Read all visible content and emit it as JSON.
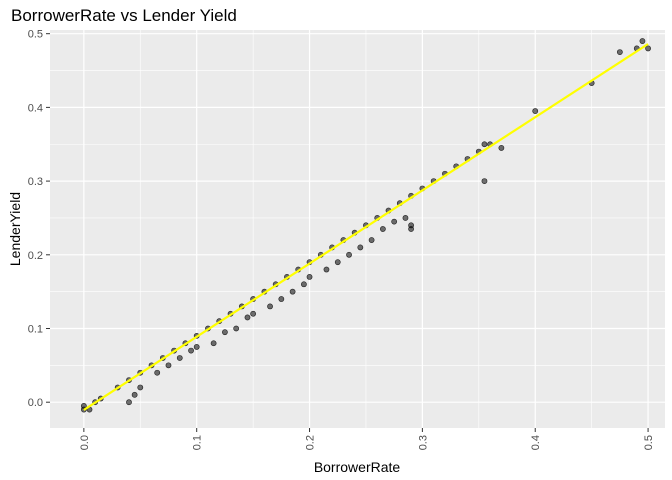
{
  "chart_data": {
    "type": "scatter",
    "title": "BorrowerRate vs Lender Yield",
    "xlabel": "BorrowerRate",
    "ylabel": "LenderYield",
    "xlim": [
      -0.03,
      0.515
    ],
    "ylim": [
      -0.035,
      0.505
    ],
    "xticks": [
      0.0,
      0.1,
      0.2,
      0.3,
      0.4,
      0.5
    ],
    "xtick_labels": [
      "0.0",
      "0.1",
      "0.2",
      "0.3",
      "0.4",
      "0.5"
    ],
    "yticks": [
      0.0,
      0.1,
      0.2,
      0.3,
      0.4,
      0.5
    ],
    "ytick_labels": [
      "0.0",
      "0.1",
      "0.2",
      "0.3",
      "0.4",
      "0.5"
    ],
    "grid": true,
    "background_color": "#EBEBEB",
    "point_color": "#000000",
    "point_alpha": 0.55,
    "trend_line": {
      "color": "#FFFF00",
      "method": "linear",
      "intercept": -0.0105,
      "slope": 0.993
    },
    "points": [
      {
        "x": 0.0,
        "y": -0.01
      },
      {
        "x": 0.0,
        "y": -0.005
      },
      {
        "x": 0.005,
        "y": -0.01
      },
      {
        "x": 0.01,
        "y": 0.0
      },
      {
        "x": 0.015,
        "y": 0.005
      },
      {
        "x": 0.03,
        "y": 0.02
      },
      {
        "x": 0.04,
        "y": 0.03
      },
      {
        "x": 0.04,
        "y": 0.0
      },
      {
        "x": 0.045,
        "y": 0.01
      },
      {
        "x": 0.05,
        "y": 0.04
      },
      {
        "x": 0.05,
        "y": 0.02
      },
      {
        "x": 0.06,
        "y": 0.05
      },
      {
        "x": 0.065,
        "y": 0.04
      },
      {
        "x": 0.07,
        "y": 0.06
      },
      {
        "x": 0.075,
        "y": 0.05
      },
      {
        "x": 0.08,
        "y": 0.07
      },
      {
        "x": 0.085,
        "y": 0.06
      },
      {
        "x": 0.09,
        "y": 0.08
      },
      {
        "x": 0.095,
        "y": 0.07
      },
      {
        "x": 0.1,
        "y": 0.09
      },
      {
        "x": 0.1,
        "y": 0.075
      },
      {
        "x": 0.11,
        "y": 0.1
      },
      {
        "x": 0.115,
        "y": 0.08
      },
      {
        "x": 0.12,
        "y": 0.11
      },
      {
        "x": 0.125,
        "y": 0.095
      },
      {
        "x": 0.13,
        "y": 0.12
      },
      {
        "x": 0.135,
        "y": 0.1
      },
      {
        "x": 0.14,
        "y": 0.13
      },
      {
        "x": 0.145,
        "y": 0.115
      },
      {
        "x": 0.15,
        "y": 0.14
      },
      {
        "x": 0.15,
        "y": 0.12
      },
      {
        "x": 0.16,
        "y": 0.15
      },
      {
        "x": 0.165,
        "y": 0.13
      },
      {
        "x": 0.17,
        "y": 0.16
      },
      {
        "x": 0.175,
        "y": 0.14
      },
      {
        "x": 0.18,
        "y": 0.17
      },
      {
        "x": 0.185,
        "y": 0.15
      },
      {
        "x": 0.19,
        "y": 0.18
      },
      {
        "x": 0.195,
        "y": 0.16
      },
      {
        "x": 0.2,
        "y": 0.19
      },
      {
        "x": 0.2,
        "y": 0.17
      },
      {
        "x": 0.21,
        "y": 0.2
      },
      {
        "x": 0.215,
        "y": 0.18
      },
      {
        "x": 0.22,
        "y": 0.21
      },
      {
        "x": 0.225,
        "y": 0.19
      },
      {
        "x": 0.23,
        "y": 0.22
      },
      {
        "x": 0.235,
        "y": 0.2
      },
      {
        "x": 0.24,
        "y": 0.23
      },
      {
        "x": 0.245,
        "y": 0.21
      },
      {
        "x": 0.25,
        "y": 0.24
      },
      {
        "x": 0.255,
        "y": 0.22
      },
      {
        "x": 0.26,
        "y": 0.25
      },
      {
        "x": 0.265,
        "y": 0.235
      },
      {
        "x": 0.27,
        "y": 0.26
      },
      {
        "x": 0.275,
        "y": 0.245
      },
      {
        "x": 0.28,
        "y": 0.27
      },
      {
        "x": 0.285,
        "y": 0.25
      },
      {
        "x": 0.29,
        "y": 0.28
      },
      {
        "x": 0.29,
        "y": 0.24
      },
      {
        "x": 0.29,
        "y": 0.235
      },
      {
        "x": 0.3,
        "y": 0.29
      },
      {
        "x": 0.31,
        "y": 0.3
      },
      {
        "x": 0.32,
        "y": 0.31
      },
      {
        "x": 0.33,
        "y": 0.32
      },
      {
        "x": 0.34,
        "y": 0.33
      },
      {
        "x": 0.35,
        "y": 0.34
      },
      {
        "x": 0.355,
        "y": 0.35
      },
      {
        "x": 0.355,
        "y": 0.3
      },
      {
        "x": 0.36,
        "y": 0.35
      },
      {
        "x": 0.37,
        "y": 0.345
      },
      {
        "x": 0.4,
        "y": 0.395
      },
      {
        "x": 0.45,
        "y": 0.433
      },
      {
        "x": 0.475,
        "y": 0.475
      },
      {
        "x": 0.49,
        "y": 0.48
      },
      {
        "x": 0.495,
        "y": 0.49
      },
      {
        "x": 0.5,
        "y": 0.48
      }
    ]
  }
}
